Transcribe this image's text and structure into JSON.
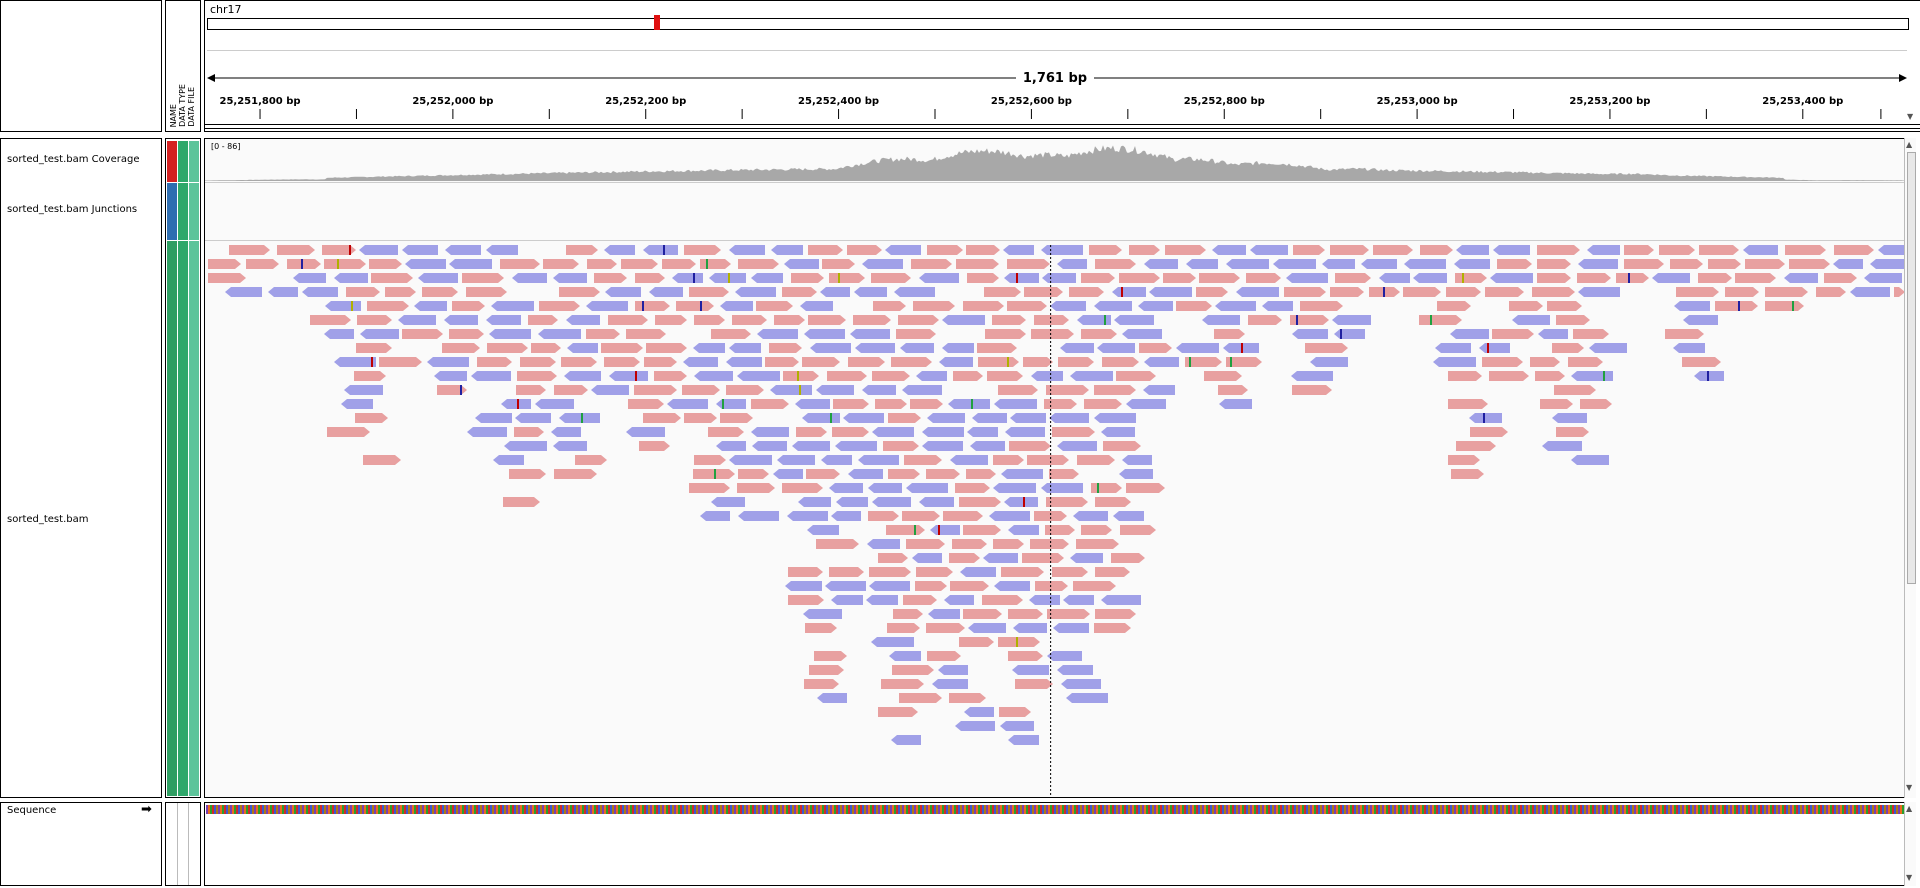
{
  "locus": {
    "chromosome": "chr17",
    "span_label": "1,761 bp"
  },
  "ruler": {
    "start_bp": 25251745,
    "end_bp": 25253506,
    "ticks": [
      {
        "bp": 25251800,
        "label": "25,251,800 bp"
      },
      {
        "bp": 25252000,
        "label": "25,252,000 bp"
      },
      {
        "bp": 25252200,
        "label": "25,252,200 bp"
      },
      {
        "bp": 25252400,
        "label": "25,252,400 bp"
      },
      {
        "bp": 25252600,
        "label": "25,252,600 bp"
      },
      {
        "bp": 25252800,
        "label": "25,252,800 bp"
      },
      {
        "bp": 25253000,
        "label": "25,253,000 bp"
      },
      {
        "bp": 25253200,
        "label": "25,253,200 bp"
      },
      {
        "bp": 25253400,
        "label": "25,253,400 bp"
      }
    ],
    "center_bp": 25252622
  },
  "attribute_headers": [
    "NAME",
    "DATA TYPE",
    "DATA FILE"
  ],
  "tracks": {
    "coverage": {
      "name": "sorted_test.bam Coverage",
      "range": "[0 - 86]",
      "color": "#a8a8a8"
    },
    "junctions": {
      "name": "sorted_test.bam Junctions"
    },
    "alignments": {
      "name": "sorted_test.bam",
      "forward_color": "#e8a0a0",
      "reverse_color": "#a0a0e8"
    },
    "sequence": {
      "name": "Sequence",
      "strand_icon": "right-arrow-icon"
    }
  },
  "colors": {
    "attr_name_red": "#d42020",
    "attr_blue": "#2e6db0",
    "attr_green": "#2ea86a",
    "attr_teal": "#5cc49a",
    "cytoband_marker": "#e01010"
  }
}
